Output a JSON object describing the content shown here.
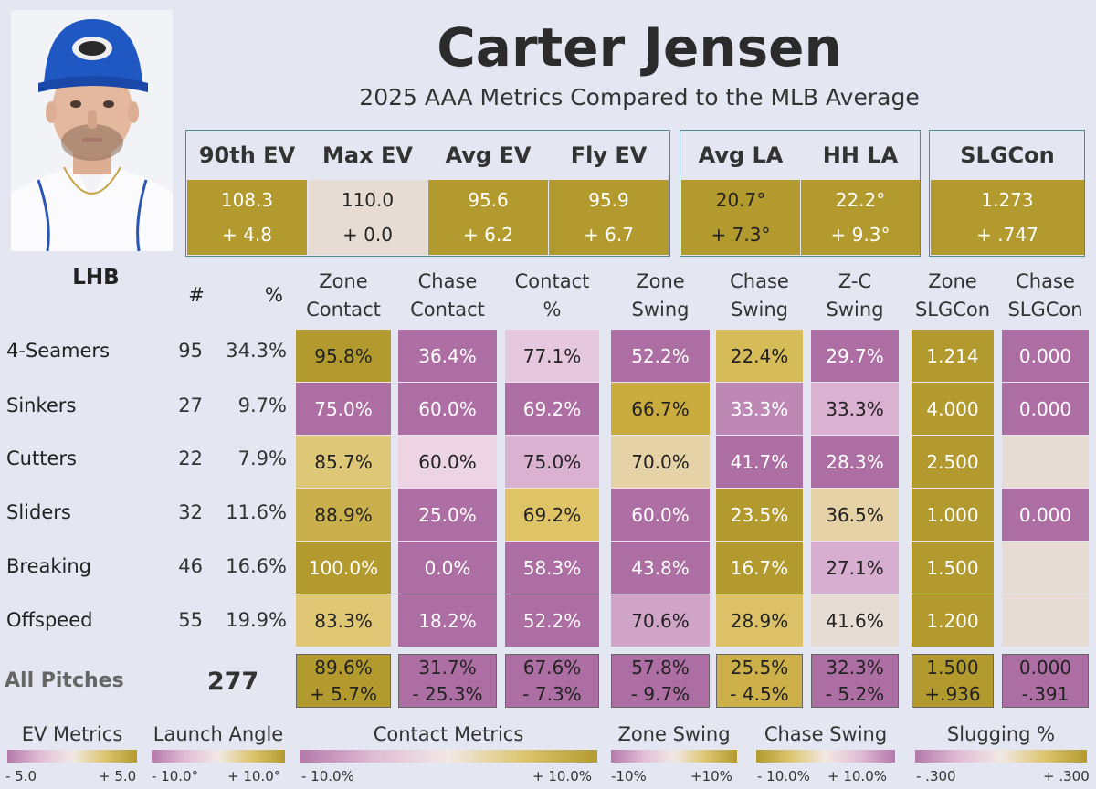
{
  "header": {
    "name": "Carter Jensen",
    "subtitle": "2025 AAA Metrics Compared to the MLB Average",
    "hand": "LHB"
  },
  "colors": {
    "background": "#e4e7f1",
    "gold_dark": "#b39a2e",
    "gold_light": "#dfc778",
    "neutral": "#e6dcd4",
    "pink_light": "#dbb1d1",
    "purple": "#ad6fa3"
  },
  "metrics": [
    {
      "label": "90th EV",
      "value": "108.3",
      "diff": "+ 4.8"
    },
    {
      "label": "Max EV",
      "value": "110.0",
      "diff": "+ 0.0"
    },
    {
      "label": "Avg EV",
      "value": "95.6",
      "diff": "+ 6.2"
    },
    {
      "label": "Fly EV",
      "value": "95.9",
      "diff": "+ 6.7"
    },
    {
      "label": "Avg LA",
      "value": "20.7°",
      "diff": "+ 7.3°"
    },
    {
      "label": "HH LA",
      "value": "22.2°",
      "diff": "+ 9.3°"
    },
    {
      "label": "SLGCon",
      "value": "1.273",
      "diff": "+ .747"
    }
  ],
  "table": {
    "count_header": "#",
    "pct_header": "%",
    "columns": [
      {
        "line1": "Zone",
        "line2": "Contact"
      },
      {
        "line1": "Chase",
        "line2": "Contact"
      },
      {
        "line1": "Contact",
        "line2": "%"
      },
      {
        "line1": "Zone",
        "line2": "Swing"
      },
      {
        "line1": "Chase",
        "line2": "Swing"
      },
      {
        "line1": "Z-C",
        "line2": "Swing"
      },
      {
        "line1": "Zone",
        "line2": "SLGCon"
      },
      {
        "line1": "Chase",
        "line2": "SLGCon"
      }
    ],
    "rows": [
      {
        "pitch": "4-Seamers",
        "count": "95",
        "pct": "34.3%",
        "values": [
          "95.8%",
          "36.4%",
          "77.1%",
          "52.2%",
          "22.4%",
          "29.7%",
          "1.214",
          "0.000"
        ]
      },
      {
        "pitch": "Sinkers",
        "count": "27",
        "pct": "9.7%",
        "values": [
          "75.0%",
          "60.0%",
          "69.2%",
          "66.7%",
          "33.3%",
          "33.3%",
          "4.000",
          "0.000"
        ]
      },
      {
        "pitch": "Cutters",
        "count": "22",
        "pct": "7.9%",
        "values": [
          "85.7%",
          "60.0%",
          "75.0%",
          "70.0%",
          "41.7%",
          "28.3%",
          "2.500",
          ""
        ]
      },
      {
        "pitch": "Sliders",
        "count": "32",
        "pct": "11.6%",
        "values": [
          "88.9%",
          "25.0%",
          "69.2%",
          "60.0%",
          "23.5%",
          "36.5%",
          "1.000",
          "0.000"
        ]
      },
      {
        "pitch": "Breaking",
        "count": "46",
        "pct": "16.6%",
        "values": [
          "100.0%",
          "0.0%",
          "58.3%",
          "43.8%",
          "16.7%",
          "27.1%",
          "1.500",
          ""
        ]
      },
      {
        "pitch": "Offspeed",
        "count": "55",
        "pct": "19.9%",
        "values": [
          "83.3%",
          "18.2%",
          "52.2%",
          "70.6%",
          "28.9%",
          "41.6%",
          "1.200",
          ""
        ]
      }
    ],
    "totals": {
      "label": "All Pitches",
      "count": "277",
      "values": [
        "89.6%",
        "31.7%",
        "67.6%",
        "57.8%",
        "25.5%",
        "32.3%",
        "1.500",
        "0.000"
      ],
      "diffs": [
        "+ 5.7%",
        "- 25.3%",
        "- 7.3%",
        "- 9.7%",
        "- 4.5%",
        "- 5.2%",
        "+.936",
        "-.391"
      ]
    }
  },
  "legend": [
    {
      "title": "EV Metrics",
      "low": "- 5.0",
      "high": "+ 5.0",
      "scheme": "pink-gold"
    },
    {
      "title": "Launch Angle",
      "low": "- 10.0°",
      "high": "+ 10.0°",
      "scheme": "pink-gold"
    },
    {
      "title": "Contact Metrics",
      "low": "- 10.0%",
      "high": "+ 10.0%",
      "scheme": "pink-gold"
    },
    {
      "title": "Zone Swing",
      "low": "-10%",
      "high": "+10%",
      "scheme": "pink-gold"
    },
    {
      "title": "Chase Swing",
      "low": "- 10.0%",
      "high": "+ 10.0%",
      "scheme": "gold-pink"
    },
    {
      "title": "Slugging %",
      "low": "- .300",
      "high": "+ .300",
      "scheme": "pink-gold"
    }
  ]
}
